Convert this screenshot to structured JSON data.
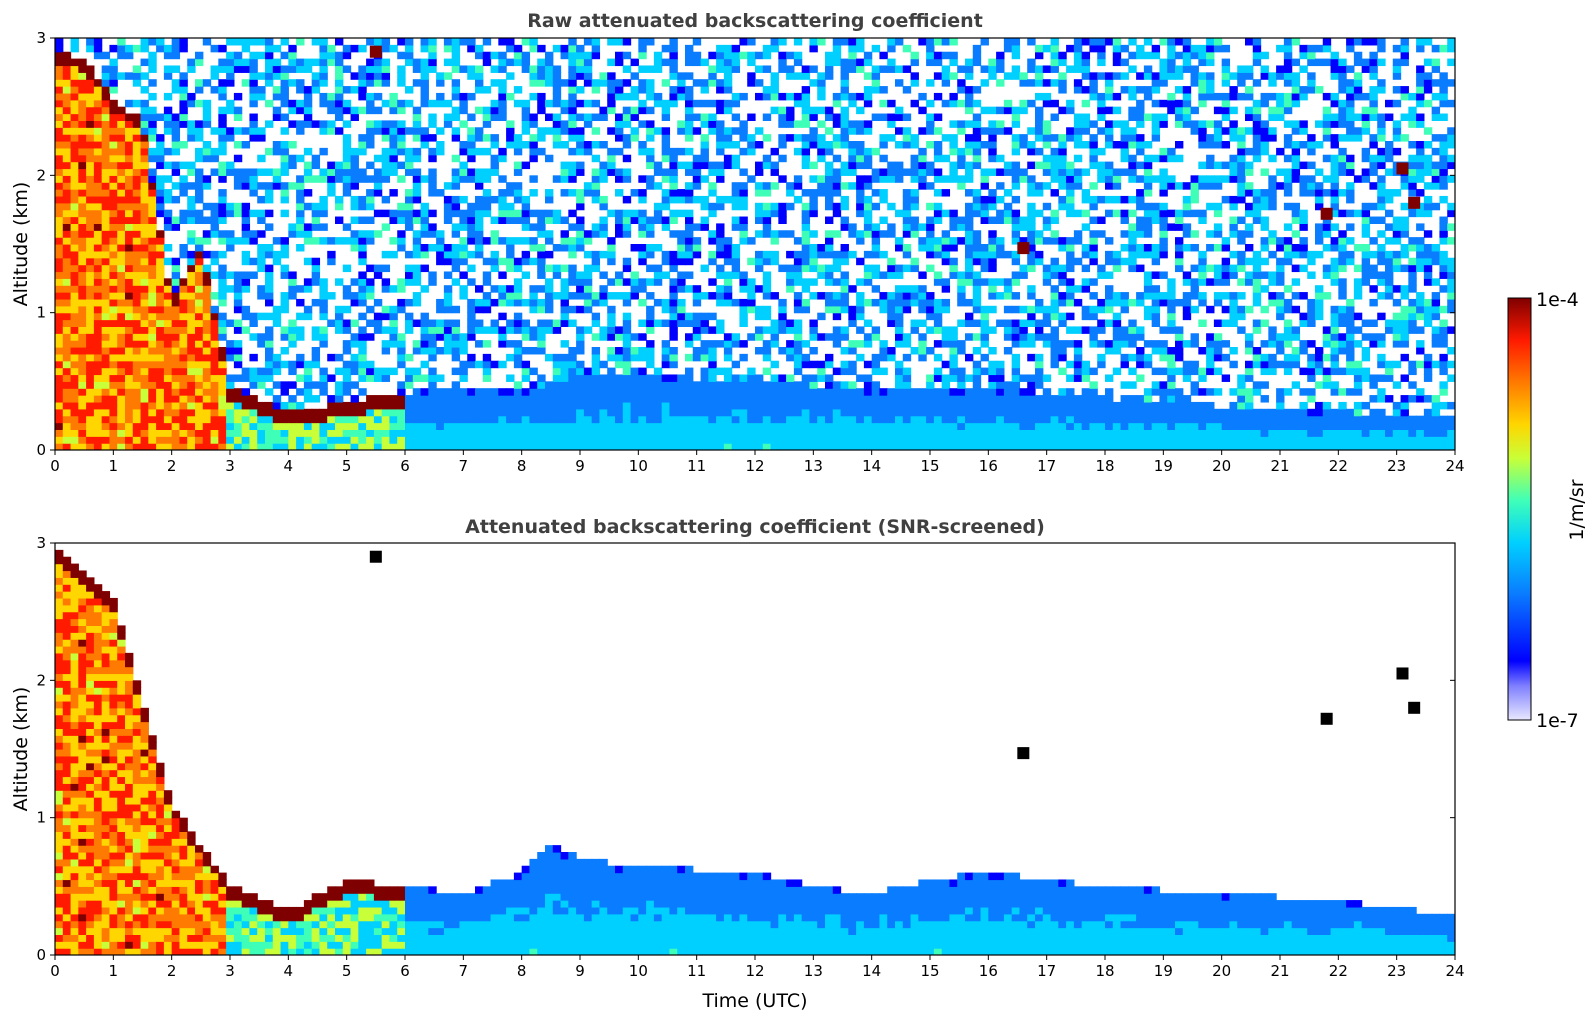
{
  "chart_data": [
    {
      "type": "heatmap",
      "title": "Raw attenuated backscattering coefficient",
      "xlabel": "",
      "ylabel": "Altitude (km)",
      "xlim": [
        0,
        24
      ],
      "ylim": [
        0,
        3
      ],
      "x_ticks": [
        "0",
        "1",
        "2",
        "3",
        "4",
        "5",
        "6",
        "7",
        "8",
        "9",
        "10",
        "11",
        "12",
        "13",
        "14",
        "15",
        "16",
        "17",
        "18",
        "19",
        "20",
        "21",
        "22",
        "23",
        "24"
      ],
      "y_ticks": [
        "0",
        "1",
        "2",
        "3"
      ],
      "features": {
        "boundary_layer_top_km": [
          [
            0,
            2.9
          ],
          [
            0.5,
            2.85
          ],
          [
            1,
            2.55
          ],
          [
            1.5,
            2.4
          ],
          [
            2,
            1.1
          ],
          [
            2.5,
            1.5
          ],
          [
            3,
            0.45
          ],
          [
            4,
            0.28
          ],
          [
            5,
            0.35
          ],
          [
            6,
            0.42
          ],
          [
            7,
            0.45
          ],
          [
            8,
            0.42
          ],
          [
            9,
            0.55
          ],
          [
            10,
            0.55
          ],
          [
            12,
            0.5
          ],
          [
            14,
            0.45
          ],
          [
            16,
            0.45
          ],
          [
            18,
            0.38
          ],
          [
            20,
            0.32
          ],
          [
            22,
            0.28
          ],
          [
            23.8,
            0.25
          ]
        ],
        "elevated_layers": [
          {
            "time": 5.5,
            "alt_km": 2.9,
            "level": "high"
          },
          {
            "time": 16.6,
            "alt_km": 1.47,
            "level": "high"
          },
          {
            "time": 21.8,
            "alt_km": 1.72,
            "level": "high"
          },
          {
            "time": 23.1,
            "alt_km": 2.05,
            "level": "high"
          },
          {
            "time": 23.3,
            "alt_km": 1.8,
            "level": "high"
          }
        ]
      }
    },
    {
      "type": "heatmap",
      "title": "Attenuated backscattering coefficient (SNR-screened)",
      "xlabel": "Time (UTC)",
      "ylabel": "Altitude (km)",
      "xlim": [
        0,
        24
      ],
      "ylim": [
        0,
        3
      ],
      "x_ticks": [
        "0",
        "1",
        "2",
        "3",
        "4",
        "5",
        "6",
        "7",
        "8",
        "9",
        "10",
        "11",
        "12",
        "13",
        "14",
        "15",
        "16",
        "17",
        "18",
        "19",
        "20",
        "21",
        "22",
        "23",
        "24"
      ],
      "y_ticks": [
        "0",
        "1",
        "2",
        "3"
      ],
      "features": {
        "screened_layer_top_km": [
          [
            0,
            2.95
          ],
          [
            1,
            2.6
          ],
          [
            2,
            1.1
          ],
          [
            3,
            0.5
          ],
          [
            4,
            0.32
          ],
          [
            5,
            0.55
          ],
          [
            6,
            0.5
          ],
          [
            7,
            0.45
          ],
          [
            8,
            0.6
          ],
          [
            8.5,
            0.8
          ],
          [
            9,
            0.7
          ],
          [
            10,
            0.65
          ],
          [
            12,
            0.6
          ],
          [
            13,
            0.5
          ],
          [
            14,
            0.45
          ],
          [
            15,
            0.55
          ],
          [
            16,
            0.6
          ],
          [
            17,
            0.55
          ],
          [
            18,
            0.5
          ],
          [
            20,
            0.45
          ],
          [
            22,
            0.4
          ],
          [
            23.8,
            0.3
          ]
        ]
      }
    }
  ],
  "colorbar": {
    "label": "1/m/sr",
    "max_label": "1e-4",
    "min_label": "1e-7",
    "colors": [
      "#e8e8ff",
      "#0000ff",
      "#0a7cff",
      "#00d0ff",
      "#3fffb8",
      "#c8ff38",
      "#ffd600",
      "#ff7a00",
      "#ff1a00",
      "#7f0000"
    ]
  }
}
